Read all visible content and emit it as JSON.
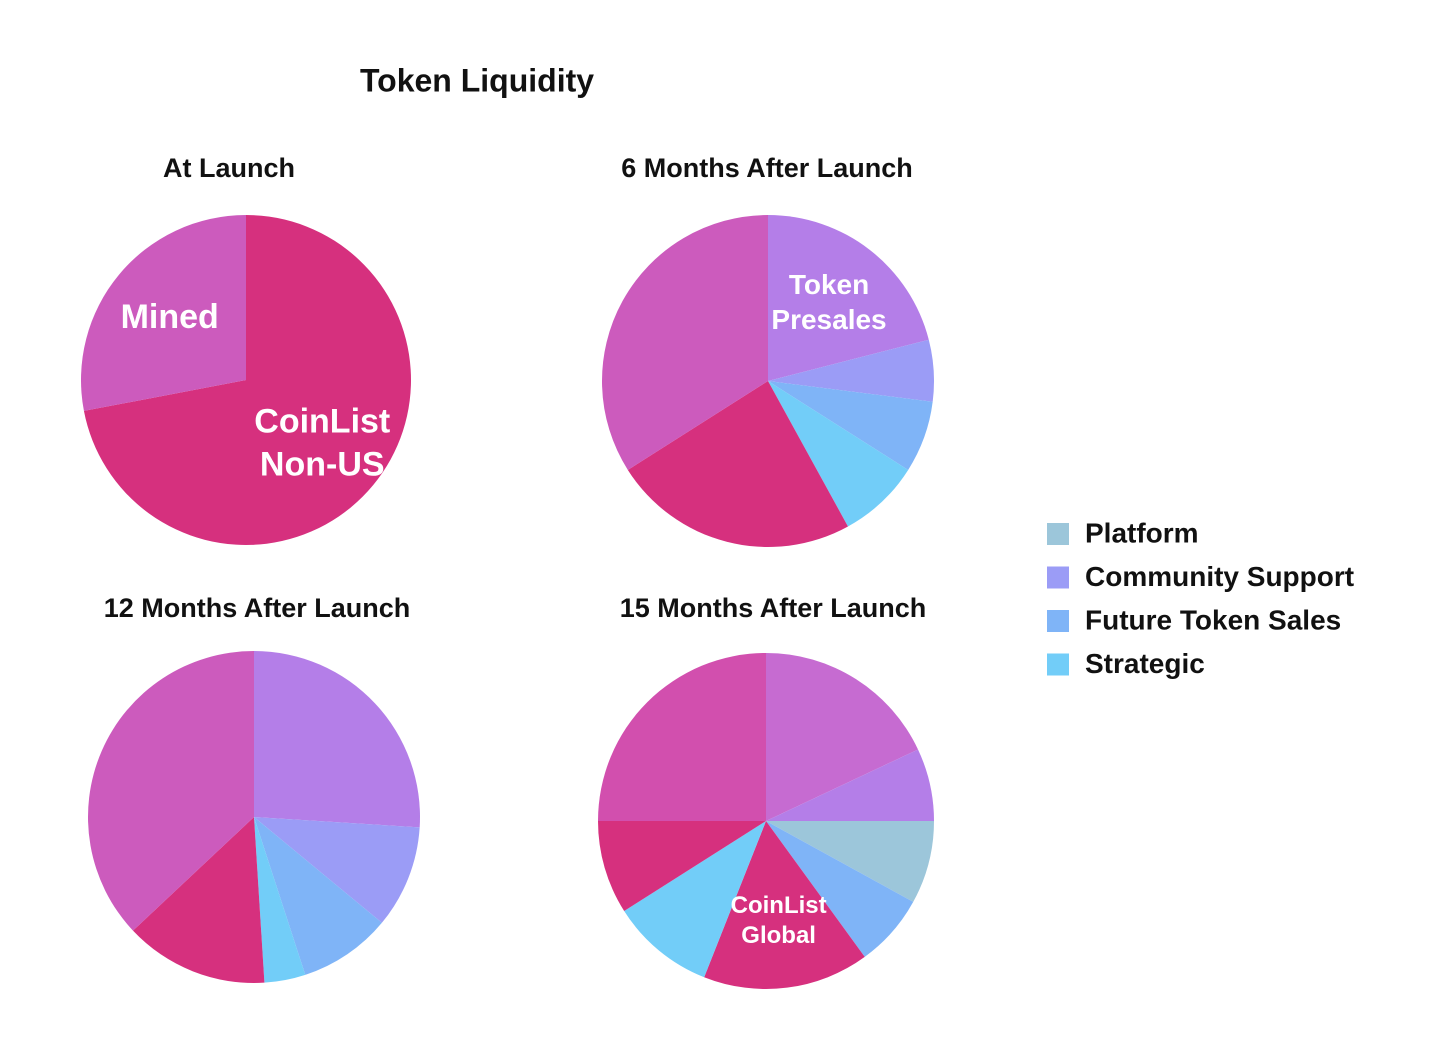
{
  "title": "Token Liquidity",
  "legend": [
    {
      "name": "Platform",
      "color": "#9cc6da"
    },
    {
      "name": "Community Support",
      "color": "#9b9cf6"
    },
    {
      "name": "Future Token Sales",
      "color": "#7fb4f7"
    },
    {
      "name": "Strategic",
      "color": "#72cdf8"
    }
  ],
  "chart_data": [
    {
      "type": "pie",
      "title": "At Launch",
      "labels": [
        "CoinList Non-US",
        "Mined"
      ],
      "values": [
        72,
        28
      ],
      "colors": [
        "#d6307e",
        "#cc5bbd"
      ]
    },
    {
      "type": "pie",
      "title": "6 Months After Launch",
      "labels": [
        "Token Presales",
        null,
        null,
        null,
        null,
        null
      ],
      "values": [
        21,
        6,
        7,
        8,
        24,
        34
      ],
      "colors": [
        "#b47ee8",
        "#9b9cf6",
        "#7fb4f7",
        "#72cdf8",
        "#d6307e",
        "#cc5bbd"
      ]
    },
    {
      "type": "pie",
      "title": "12 Months After Launch",
      "labels": [
        null,
        null,
        null,
        null,
        null,
        null
      ],
      "values": [
        26,
        10,
        9,
        4,
        14,
        37
      ],
      "colors": [
        "#b47ee8",
        "#9b9cf6",
        "#7fb4f7",
        "#72cdf8",
        "#d6307e",
        "#cc5bbd"
      ]
    },
    {
      "type": "pie",
      "title": "15 Months After Launch",
      "labels": [
        null,
        null,
        null,
        null,
        "CoinList Global",
        null,
        null,
        null
      ],
      "values": [
        18,
        7,
        8,
        7,
        16,
        10,
        9,
        25
      ],
      "colors": [
        "#c66bd1",
        "#b47ee8",
        "#9cc6da",
        "#7fb4f7",
        "#d6307e",
        "#72cdf8",
        "#d6307e",
        "#d24fae"
      ]
    }
  ]
}
